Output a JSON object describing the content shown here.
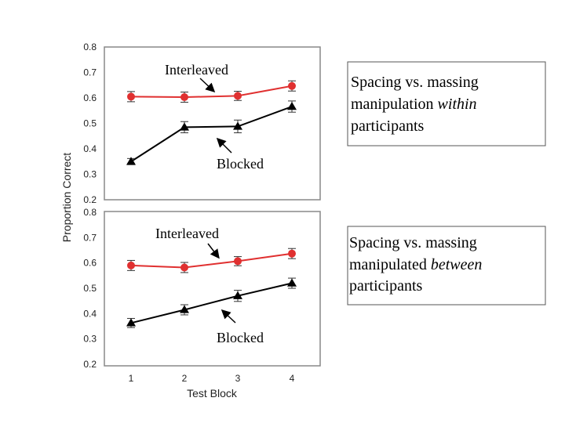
{
  "chart_data": [
    {
      "type": "line",
      "x": [
        1,
        2,
        3,
        4
      ],
      "ylim": [
        0.2,
        0.8
      ],
      "yticks": [
        "0.2",
        "0.3",
        "0.4",
        "0.5",
        "0.6",
        "0.7",
        "0.8"
      ],
      "series": [
        {
          "name": "Interleaved",
          "values": [
            0.605,
            0.603,
            0.608,
            0.647
          ],
          "error": [
            0.02,
            0.02,
            0.018,
            0.02
          ],
          "color": "#e03030",
          "marker": "circle"
        },
        {
          "name": "Blocked",
          "values": [
            0.35,
            0.485,
            0.488,
            0.566
          ],
          "error": [
            0.012,
            0.022,
            0.025,
            0.022
          ],
          "color": "#000000",
          "marker": "triangle"
        }
      ],
      "annotations": [
        {
          "text": "Interleaved",
          "arrow_to": "Interleaved"
        },
        {
          "text": "Blocked",
          "arrow_to": "Blocked"
        }
      ],
      "note": {
        "line1": "Spacing vs. massing",
        "line2_a": "manipulation ",
        "line2_b": "within",
        "line3": "participants"
      }
    },
    {
      "type": "line",
      "x": [
        1,
        2,
        3,
        4
      ],
      "xticks": [
        "1",
        "2",
        "3",
        "4"
      ],
      "ylim": [
        0.2,
        0.8
      ],
      "yticks": [
        "0.2",
        "0.3",
        "0.4",
        "0.5",
        "0.6",
        "0.7",
        "0.8"
      ],
      "series": [
        {
          "name": "Interleaved",
          "values": [
            0.59,
            0.582,
            0.607,
            0.637
          ],
          "error": [
            0.02,
            0.02,
            0.018,
            0.02
          ],
          "color": "#e03030",
          "marker": "circle"
        },
        {
          "name": "Blocked",
          "values": [
            0.363,
            0.415,
            0.47,
            0.52
          ],
          "error": [
            0.018,
            0.02,
            0.022,
            0.02
          ],
          "color": "#000000",
          "marker": "triangle"
        }
      ],
      "annotations": [
        {
          "text": "Interleaved",
          "arrow_to": "Interleaved"
        },
        {
          "text": "Blocked",
          "arrow_to": "Blocked"
        }
      ],
      "note": {
        "line1": "Spacing vs. massing",
        "line2_a": "manipulated ",
        "line2_b": "between",
        "line3": "participants"
      }
    }
  ],
  "ylabel": "Proportion Correct",
  "xlabel": "Test Block"
}
